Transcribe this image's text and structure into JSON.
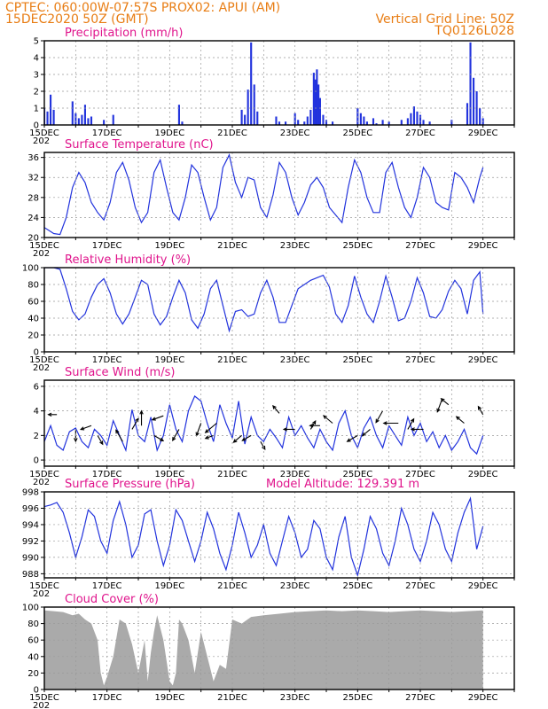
{
  "header": {
    "left_line1": "CPTEC:   060:00W-07:57S   PROX02: APUI (AM)",
    "left_line2": "15DEC2020 50Z (GMT)",
    "right_line1": "Vertical Grid Line: 50Z",
    "right_line2": "TQ0126L028"
  },
  "colors": {
    "header_text": "#e87d14",
    "panel_title": "#e0148c",
    "series": "#2233dd",
    "cloud_fill": "#aaaaaa",
    "wind_arrow": "#000000"
  },
  "x_axis": {
    "tick_labels": [
      "15DEC",
      "17DEC",
      "19DEC",
      "21DEC",
      "23DEC",
      "25DEC",
      "27DEC",
      "29DEC"
    ],
    "year_fragment": "202"
  },
  "chart_data": [
    {
      "id": "precip",
      "type": "bar",
      "title": "Precipitation (mm/h)",
      "ylim": [
        0,
        5
      ],
      "yticks": [
        "0",
        "1",
        "2",
        "3",
        "4",
        "5"
      ],
      "grid": true,
      "bars": [
        [
          0.0,
          1.0
        ],
        [
          0.1,
          0.8
        ],
        [
          0.2,
          1.8
        ],
        [
          0.3,
          0.9
        ],
        [
          0.9,
          1.4
        ],
        [
          1.0,
          0.7
        ],
        [
          1.1,
          0.4
        ],
        [
          1.2,
          0.6
        ],
        [
          1.3,
          1.2
        ],
        [
          1.4,
          0.4
        ],
        [
          1.5,
          0.5
        ],
        [
          1.9,
          0.3
        ],
        [
          2.2,
          0.6
        ],
        [
          4.3,
          1.2
        ],
        [
          4.4,
          0.2
        ],
        [
          6.3,
          0.9
        ],
        [
          6.4,
          0.6
        ],
        [
          6.5,
          2.1
        ],
        [
          6.6,
          4.9
        ],
        [
          6.7,
          2.4
        ],
        [
          6.8,
          0.8
        ],
        [
          7.4,
          0.5
        ],
        [
          7.5,
          0.2
        ],
        [
          7.7,
          0.2
        ],
        [
          8.0,
          0.7
        ],
        [
          8.1,
          0.3
        ],
        [
          8.3,
          0.2
        ],
        [
          8.4,
          0.5
        ],
        [
          8.5,
          0.9
        ],
        [
          8.6,
          3.1
        ],
        [
          8.65,
          2.7
        ],
        [
          8.7,
          3.3
        ],
        [
          8.75,
          2.4
        ],
        [
          8.8,
          1.6
        ],
        [
          8.9,
          0.6
        ],
        [
          9.0,
          0.3
        ],
        [
          9.2,
          0.2
        ],
        [
          10.0,
          1.0
        ],
        [
          10.1,
          0.7
        ],
        [
          10.2,
          0.5
        ],
        [
          10.3,
          0.2
        ],
        [
          10.5,
          0.4
        ],
        [
          10.6,
          0.1
        ],
        [
          10.8,
          0.3
        ],
        [
          11.0,
          0.2
        ],
        [
          11.4,
          0.3
        ],
        [
          11.6,
          0.4
        ],
        [
          11.7,
          0.7
        ],
        [
          11.8,
          1.1
        ],
        [
          11.9,
          0.8
        ],
        [
          12.0,
          0.6
        ],
        [
          12.1,
          0.3
        ],
        [
          12.3,
          0.2
        ],
        [
          13.0,
          0.3
        ],
        [
          13.5,
          1.3
        ],
        [
          13.6,
          4.9
        ],
        [
          13.7,
          2.8
        ],
        [
          13.8,
          2.0
        ],
        [
          13.9,
          1.0
        ],
        [
          14.0,
          0.4
        ]
      ]
    },
    {
      "id": "temp",
      "type": "line",
      "title": "Surface Temperature (nC)",
      "ylim": [
        20,
        37
      ],
      "yticks": [
        "20",
        "24",
        "28",
        "32",
        "36"
      ],
      "grid": true,
      "x": [
        0.0,
        0.3,
        0.5,
        0.7,
        0.9,
        1.1,
        1.3,
        1.5,
        1.7,
        1.9,
        2.1,
        2.3,
        2.5,
        2.7,
        2.9,
        3.1,
        3.3,
        3.5,
        3.7,
        3.9,
        4.1,
        4.3,
        4.5,
        4.7,
        4.9,
        5.1,
        5.3,
        5.5,
        5.7,
        5.9,
        6.1,
        6.3,
        6.5,
        6.7,
        6.9,
        7.1,
        7.3,
        7.5,
        7.7,
        7.9,
        8.1,
        8.3,
        8.5,
        8.7,
        8.9,
        9.1,
        9.3,
        9.5,
        9.7,
        9.9,
        10.1,
        10.3,
        10.5,
        10.7,
        10.9,
        11.1,
        11.3,
        11.5,
        11.7,
        11.9,
        12.1,
        12.3,
        12.5,
        12.7,
        12.9,
        13.1,
        13.3,
        13.5,
        13.7,
        13.9,
        14.0
      ],
      "y": [
        22,
        20.8,
        20.6,
        24,
        30,
        33,
        31,
        27,
        25,
        23.5,
        27,
        33,
        35,
        31.5,
        26,
        23,
        25,
        33,
        35.5,
        30,
        25,
        23.5,
        28,
        34.5,
        33,
        28,
        23.5,
        26,
        34,
        36.5,
        31,
        28,
        32,
        31.5,
        26,
        24,
        28.5,
        35,
        33,
        28,
        24.5,
        27,
        30.5,
        32,
        30,
        26,
        24.5,
        23,
        30,
        35.5,
        33,
        28,
        25,
        25,
        33,
        35,
        30,
        26,
        24,
        28,
        34,
        32,
        27,
        26,
        25.5,
        33,
        32,
        30,
        27,
        32,
        34
      ]
    },
    {
      "id": "rh",
      "type": "line",
      "title": "Relative Humidity (%)",
      "ylim": [
        0,
        100
      ],
      "yticks": [
        "0",
        "20",
        "40",
        "60",
        "80",
        "100"
      ],
      "grid": true,
      "x": [
        0.0,
        0.3,
        0.5,
        0.7,
        0.9,
        1.1,
        1.3,
        1.5,
        1.7,
        1.9,
        2.1,
        2.3,
        2.5,
        2.7,
        2.9,
        3.1,
        3.3,
        3.5,
        3.7,
        3.9,
        4.1,
        4.3,
        4.5,
        4.7,
        4.9,
        5.1,
        5.3,
        5.5,
        5.7,
        5.9,
        6.1,
        6.3,
        6.5,
        6.7,
        6.9,
        7.1,
        7.3,
        7.5,
        7.7,
        7.9,
        8.1,
        8.3,
        8.5,
        8.7,
        8.9,
        9.1,
        9.3,
        9.5,
        9.7,
        9.9,
        10.1,
        10.3,
        10.5,
        10.7,
        10.9,
        11.1,
        11.3,
        11.5,
        11.7,
        11.9,
        12.1,
        12.3,
        12.5,
        12.7,
        12.9,
        13.1,
        13.3,
        13.5,
        13.7,
        13.9,
        14.0
      ],
      "y": [
        100,
        100,
        98,
        75,
        48,
        38,
        45,
        65,
        80,
        87,
        70,
        45,
        33,
        45,
        65,
        85,
        80,
        45,
        32,
        42,
        65,
        85,
        70,
        38,
        28,
        45,
        75,
        85,
        55,
        25,
        48,
        50,
        42,
        45,
        70,
        85,
        65,
        35,
        35,
        55,
        75,
        80,
        85,
        88,
        91,
        77,
        45,
        35,
        55,
        90,
        65,
        45,
        35,
        60,
        90,
        65,
        37,
        40,
        60,
        88,
        70,
        42,
        40,
        50,
        72,
        85,
        75,
        45,
        85,
        95,
        45
      ]
    },
    {
      "id": "wind",
      "type": "line",
      "title": "Surface Wind (m/s)",
      "ylim": [
        -0.5,
        6.5
      ],
      "yticks": [
        "0",
        "2",
        "4",
        "6"
      ],
      "grid": true,
      "x": [
        0.0,
        0.2,
        0.4,
        0.6,
        0.8,
        1.0,
        1.2,
        1.4,
        1.6,
        1.8,
        2.0,
        2.2,
        2.4,
        2.6,
        2.8,
        3.0,
        3.2,
        3.4,
        3.6,
        3.8,
        4.0,
        4.2,
        4.4,
        4.6,
        4.8,
        5.0,
        5.2,
        5.4,
        5.6,
        5.8,
        6.0,
        6.2,
        6.4,
        6.6,
        6.8,
        7.0,
        7.2,
        7.4,
        7.6,
        7.8,
        8.0,
        8.2,
        8.4,
        8.6,
        8.8,
        9.0,
        9.2,
        9.4,
        9.6,
        9.8,
        10.0,
        10.2,
        10.4,
        10.6,
        10.8,
        11.0,
        11.2,
        11.4,
        11.6,
        11.8,
        12.0,
        12.2,
        12.4,
        12.6,
        12.8,
        13.0,
        13.2,
        13.4,
        13.6,
        13.8,
        14.0
      ],
      "y": [
        1.5,
        2.8,
        1.2,
        0.8,
        2.3,
        2.6,
        1.5,
        1.0,
        2.5,
        2.0,
        1.2,
        3.2,
        2.0,
        0.8,
        4.1,
        2.0,
        1.5,
        3.5,
        0.8,
        2.0,
        4.5,
        2.5,
        1.5,
        4.0,
        5.2,
        4.8,
        3.0,
        1.5,
        4.5,
        3.0,
        1.8,
        4.8,
        1.3,
        3.5,
        2.0,
        1.5,
        2.5,
        1.8,
        1.0,
        3.5,
        2.0,
        2.8,
        1.8,
        1.0,
        2.5,
        1.5,
        0.8,
        3.0,
        4.0,
        2.0,
        1.0,
        2.6,
        3.5,
        2.0,
        1.0,
        2.8,
        2.0,
        1.2,
        3.5,
        2.0,
        3.0,
        1.5,
        2.3,
        1.0,
        2.0,
        0.8,
        1.5,
        2.5,
        1.0,
        0.5,
        2.0
      ],
      "arrows": [
        [
          0.4,
          3.7,
          180,
          1.2
        ],
        [
          1.0,
          2.5,
          270,
          2.5
        ],
        [
          1.5,
          2.8,
          200,
          2.2
        ],
        [
          1.7,
          2.0,
          300,
          1.8
        ],
        [
          2.5,
          1.5,
          120,
          3.0
        ],
        [
          2.8,
          2.5,
          60,
          2.7
        ],
        [
          3.1,
          2.8,
          90,
          3.5
        ],
        [
          3.5,
          2.0,
          330,
          2.0
        ],
        [
          3.8,
          3.6,
          200,
          2.4
        ],
        [
          4.3,
          2.5,
          240,
          2.8
        ],
        [
          5.0,
          3.0,
          250,
          3.0
        ],
        [
          5.4,
          2.0,
          200,
          1.2
        ],
        [
          5.5,
          3.0,
          220,
          3.5
        ],
        [
          6.3,
          2.0,
          220,
          2.0
        ],
        [
          6.6,
          2.0,
          210,
          1.8
        ],
        [
          6.9,
          1.5,
          300,
          1.3
        ],
        [
          7.5,
          3.8,
          130,
          1.7
        ],
        [
          8.0,
          2.5,
          180,
          2.2
        ],
        [
          8.5,
          2.5,
          60,
          1.6
        ],
        [
          8.8,
          2.8,
          180,
          1.8
        ],
        [
          9.2,
          3.0,
          140,
          2.4
        ],
        [
          10.0,
          2.0,
          210,
          2.5
        ],
        [
          10.4,
          2.5,
          220,
          1.8
        ],
        [
          10.8,
          4.0,
          240,
          3.0
        ],
        [
          11.3,
          3.0,
          180,
          3.5
        ],
        [
          11.6,
          2.5,
          60,
          2.5
        ],
        [
          12.1,
          2.5,
          180,
          2.5
        ],
        [
          12.7,
          5.0,
          250,
          3.3
        ],
        [
          12.9,
          4.5,
          140,
          1.6
        ],
        [
          13.4,
          3.0,
          140,
          1.8
        ],
        [
          14.0,
          3.7,
          120,
          1.5
        ]
      ]
    },
    {
      "id": "pressure",
      "type": "line",
      "title": "Surface Pressure (hPa)",
      "annotation": "Model Altitude: 129.391  m",
      "ylim": [
        987.5,
        998
      ],
      "yticks": [
        "988",
        "990",
        "992",
        "994",
        "996",
        "998"
      ],
      "grid": true,
      "x": [
        0.0,
        0.2,
        0.4,
        0.6,
        0.8,
        1.0,
        1.2,
        1.4,
        1.6,
        1.8,
        2.0,
        2.2,
        2.4,
        2.6,
        2.8,
        3.0,
        3.2,
        3.4,
        3.6,
        3.8,
        4.0,
        4.2,
        4.4,
        4.6,
        4.8,
        5.0,
        5.2,
        5.4,
        5.6,
        5.8,
        6.0,
        6.2,
        6.4,
        6.6,
        6.8,
        7.0,
        7.2,
        7.4,
        7.6,
        7.8,
        8.0,
        8.2,
        8.4,
        8.6,
        8.8,
        9.0,
        9.2,
        9.4,
        9.6,
        9.8,
        10.0,
        10.2,
        10.4,
        10.6,
        10.8,
        11.0,
        11.2,
        11.4,
        11.6,
        11.8,
        12.0,
        12.2,
        12.4,
        12.6,
        12.8,
        13.0,
        13.2,
        13.4,
        13.6,
        13.8,
        14.0
      ],
      "y": [
        996.2,
        996.4,
        996.7,
        995.5,
        993.0,
        990.0,
        992.5,
        995.8,
        995.0,
        992.0,
        990.5,
        994.5,
        996.8,
        994.0,
        990.0,
        991.5,
        995.3,
        995.8,
        992.0,
        989.0,
        991.5,
        995.8,
        994.5,
        992.0,
        989.5,
        992.0,
        995.5,
        993.5,
        990.5,
        988.5,
        991.5,
        995.5,
        993.0,
        990.0,
        991.5,
        994.0,
        990.5,
        989.0,
        992.0,
        995.0,
        993.0,
        990.0,
        991.0,
        994.5,
        993.5,
        990.0,
        988.5,
        992.5,
        995.0,
        990.0,
        987.8,
        991.0,
        995.0,
        993.5,
        990.5,
        989.0,
        992.0,
        996.0,
        994.0,
        991.0,
        989.5,
        992.0,
        995.5,
        994.0,
        991.0,
        989.5,
        993.0,
        995.5,
        997.2,
        991.0,
        993.8
      ]
    },
    {
      "id": "cloud",
      "type": "area",
      "title": "Cloud Cover (%)",
      "ylim": [
        0,
        100
      ],
      "yticks": [
        "0",
        "20",
        "40",
        "60",
        "80",
        "100"
      ],
      "grid": true,
      "x": [
        0.0,
        0.3,
        0.6,
        0.9,
        1.1,
        1.3,
        1.5,
        1.7,
        1.8,
        1.9,
        2.0,
        2.2,
        2.4,
        2.6,
        2.8,
        3.0,
        3.2,
        3.3,
        3.4,
        3.5,
        3.6,
        3.8,
        4.0,
        4.1,
        4.2,
        4.3,
        4.4,
        4.6,
        4.8,
        5.0,
        5.2,
        5.4,
        5.6,
        5.8,
        6.0,
        6.3,
        6.6,
        7.0,
        7.5,
        8.0,
        8.5,
        9.0,
        9.5,
        10.0,
        10.5,
        11.0,
        11.5,
        12.0,
        12.5,
        13.0,
        13.5,
        14.0
      ],
      "y": [
        96,
        95,
        94,
        90,
        92,
        85,
        80,
        60,
        20,
        5,
        15,
        40,
        85,
        80,
        55,
        20,
        60,
        10,
        45,
        70,
        90,
        60,
        10,
        5,
        20,
        85,
        80,
        60,
        20,
        70,
        40,
        10,
        30,
        25,
        85,
        80,
        88,
        90,
        92,
        94,
        95,
        96,
        95,
        96,
        95,
        94,
        95,
        96,
        95,
        94,
        95,
        96
      ]
    }
  ]
}
